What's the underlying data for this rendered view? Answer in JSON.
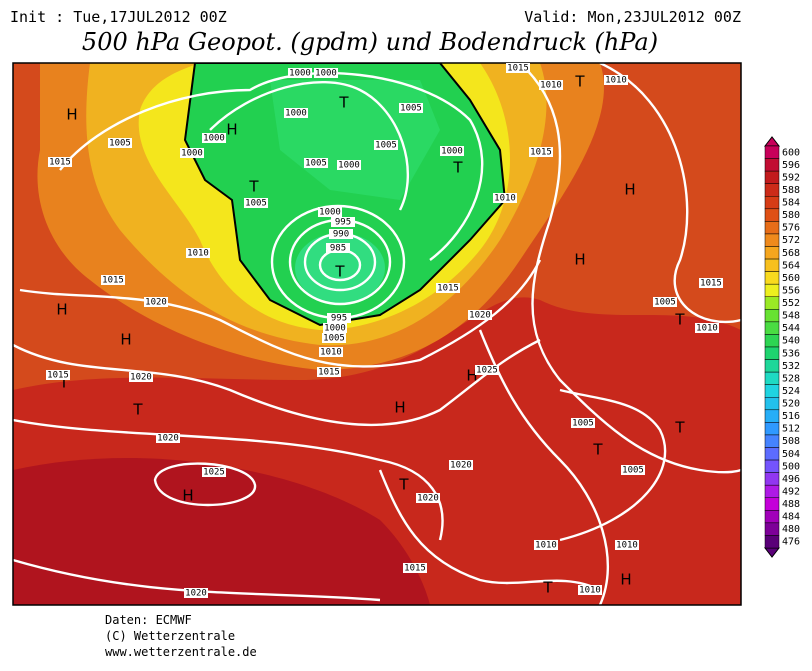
{
  "header": {
    "init": "Init : Tue,17JUL2012 00Z",
    "valid": "Valid: Mon,23JUL2012 00Z",
    "title": "500 hPa Geopot. (gpdm) und Bodendruck (hPa)"
  },
  "map": {
    "centers": [
      "H",
      "H",
      "T",
      "T",
      "T",
      "T",
      "H",
      "H",
      "T",
      "H",
      "H",
      "T",
      "T",
      "H",
      "H",
      "T",
      "T",
      "T",
      "T",
      "H",
      "T",
      "H"
    ],
    "isobar_labels": [
      "1000",
      "1000",
      "1000",
      "1005",
      "1000",
      "1005",
      "1000",
      "1015",
      "1005",
      "1000",
      "1005",
      "1000",
      "1005",
      "1000",
      "995",
      "990",
      "985",
      "1010",
      "1015",
      "1020",
      "1010",
      "1015",
      "1015",
      "1020",
      "995",
      "1000",
      "1005",
      "1010",
      "1015",
      "1025",
      "1015",
      "1020",
      "1020",
      "1025",
      "1020",
      "1020",
      "1005",
      "1005",
      "1005",
      "1015",
      "1010",
      "1010",
      "1015",
      "1010",
      "1010",
      "1015",
      "1010",
      "1010",
      "1020"
    ]
  },
  "legend": {
    "values": [
      600,
      596,
      592,
      588,
      584,
      580,
      576,
      572,
      568,
      564,
      560,
      556,
      552,
      548,
      544,
      540,
      536,
      532,
      528,
      524,
      520,
      516,
      512,
      508,
      504,
      500,
      496,
      492,
      488,
      484,
      480,
      476
    ]
  },
  "footer": {
    "source": "Daten: ECMWF",
    "copyright": "(C) Wetterzentrale",
    "url": "www.wetterzentrale.de"
  }
}
